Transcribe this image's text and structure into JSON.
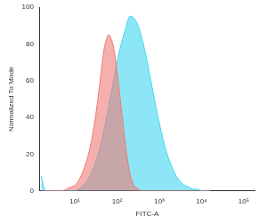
{
  "chart_data": {
    "type": "line",
    "x_label": "FITC-A",
    "y_label": "Normalized To Mode",
    "log": "x",
    "grid": false,
    "x": [
      1.6,
      2,
      2.5,
      3.2,
      4,
      5,
      6.3,
      7.9,
      10,
      12.6,
      15.8,
      20,
      25.1,
      31.6,
      39.8,
      50.1,
      63.1,
      79.4,
      100,
      125.9,
      158.5,
      199.5,
      251.2,
      316.2,
      398.1,
      501.2,
      631,
      794.3,
      1000,
      1259,
      1585,
      1995,
      2512,
      3162,
      3981,
      5012,
      6310,
      7943,
      10000,
      12589,
      15849
    ],
    "series": [
      {
        "color": "#ee7b76",
        "values": [
          0,
          0,
          0,
          0,
          0,
          0,
          1,
          2,
          3,
          6,
          11,
          18,
          28,
          42,
          60,
          78,
          85,
          80,
          65,
          45,
          25,
          10,
          3,
          1,
          0,
          0,
          0,
          0,
          0,
          0,
          0,
          0,
          0,
          0,
          0,
          0,
          0,
          0,
          0,
          0,
          0
        ]
      },
      {
        "color": "#3fd6f0",
        "values": [
          8,
          0,
          0,
          0,
          0,
          0,
          0,
          0,
          0,
          1,
          3,
          6,
          10,
          16,
          24,
          34,
          46,
          58,
          70,
          80,
          88,
          95,
          94,
          90,
          82,
          72,
          60,
          48,
          37,
          27,
          19,
          13,
          8,
          5,
          3,
          2,
          1,
          1,
          0,
          0,
          0
        ]
      }
    ],
    "xlim": [
      1.5,
      180000
    ],
    "xticks": [
      {
        "value": 10,
        "label": "10¹"
      },
      {
        "value": 100,
        "label": "10²"
      },
      {
        "value": 1000,
        "label": "10³"
      },
      {
        "value": 10000,
        "label": "10⁴"
      },
      {
        "value": 100000,
        "label": "10⁵"
      }
    ],
    "ylim": [
      0,
      100
    ],
    "yticks": [
      0,
      20,
      40,
      60,
      80,
      100
    ]
  }
}
